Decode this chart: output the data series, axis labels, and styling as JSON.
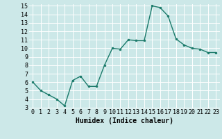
{
  "x": [
    0,
    1,
    2,
    3,
    4,
    5,
    6,
    7,
    8,
    9,
    10,
    11,
    12,
    13,
    14,
    15,
    16,
    17,
    18,
    19,
    20,
    21,
    22,
    23
  ],
  "y": [
    6.0,
    5.0,
    4.5,
    4.0,
    3.2,
    6.2,
    6.7,
    5.5,
    5.5,
    8.0,
    10.0,
    9.9,
    11.0,
    10.9,
    10.9,
    15.0,
    14.8,
    13.8,
    11.1,
    10.4,
    10.0,
    9.9,
    9.5,
    9.5
  ],
  "line_color": "#1a7a6a",
  "marker": "o",
  "marker_size": 2.0,
  "line_width": 1.0,
  "xlabel": "Humidex (Indice chaleur)",
  "ylim": [
    3,
    15
  ],
  "xlim": [
    -0.5,
    23.5
  ],
  "yticks": [
    3,
    4,
    5,
    6,
    7,
    8,
    9,
    10,
    11,
    12,
    13,
    14,
    15
  ],
  "xticks": [
    0,
    1,
    2,
    3,
    4,
    5,
    6,
    7,
    8,
    9,
    10,
    11,
    12,
    13,
    14,
    15,
    16,
    17,
    18,
    19,
    20,
    21,
    22,
    23
  ],
  "background_color": "#cce8e8",
  "grid_color": "#ffffff",
  "tick_fontsize": 6,
  "xlabel_fontsize": 7
}
